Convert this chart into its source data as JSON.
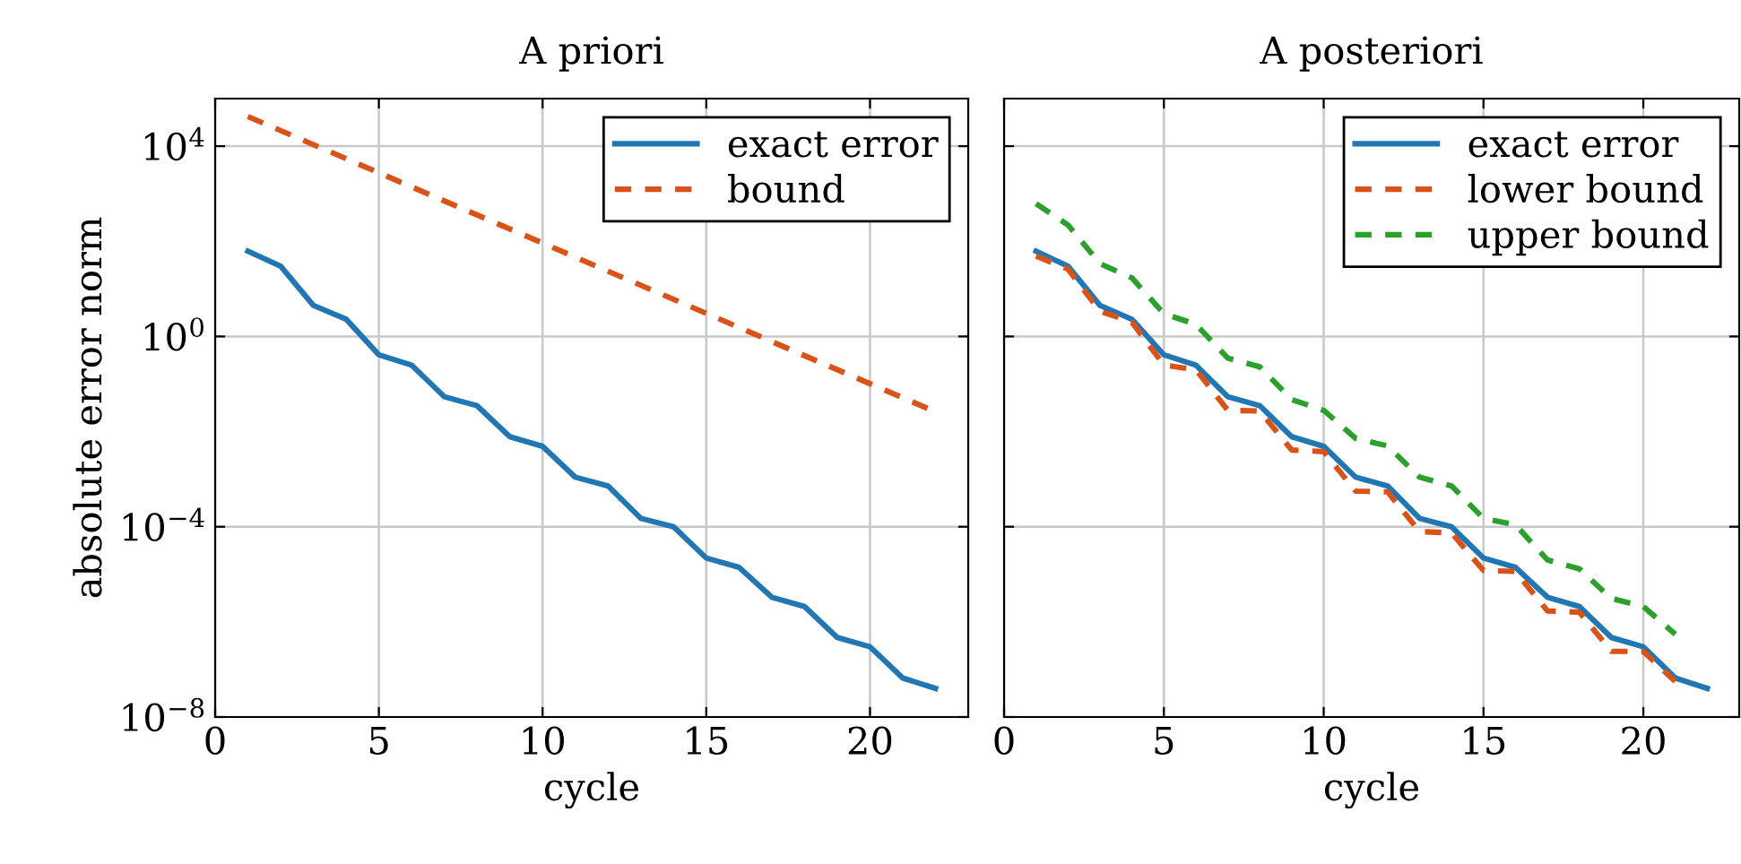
{
  "chart_data": [
    {
      "type": "line",
      "title": "A priori",
      "xlabel": "cycle",
      "ylabel": "absolute error norm",
      "log": "y",
      "grid": true,
      "legend": "top right",
      "xlim": [
        0,
        23
      ],
      "xticks": [
        0,
        5,
        10,
        15,
        20
      ],
      "ylim": [
        1e-08,
        100000.0
      ],
      "yticks": [
        {
          "value": 1e-08,
          "label": "10$^{−8}$"
        },
        {
          "value": 0.0001,
          "label": "10$^{−4}$"
        },
        {
          "value": 1,
          "label": "10$^{0}$"
        },
        {
          "value": 10000.0,
          "label": "10$^{4}$"
        }
      ],
      "series": [
        {
          "name": "exact error",
          "color": "#2077b4",
          "line_style": "solid",
          "x": [
            1,
            2,
            3,
            4,
            5,
            6,
            7,
            8,
            9,
            10,
            11,
            12,
            13,
            14,
            15,
            16,
            17,
            18,
            19,
            20,
            21,
            22
          ],
          "values": [
            62,
            30,
            4.5,
            2.3,
            0.41,
            0.25,
            0.054,
            0.035,
            0.0078,
            0.0049,
            0.0011,
            0.00072,
            0.00015,
            0.0001,
            2.2e-05,
            1.4e-05,
            3.3e-06,
            2.1e-06,
            4.7e-07,
            3e-07,
            6.6e-08,
            4e-08
          ]
        },
        {
          "name": "bound",
          "color": "#d95319",
          "line_style": "dashed",
          "x": [
            1,
            22
          ],
          "values": [
            42000.0,
            0.026
          ]
        }
      ]
    },
    {
      "type": "line",
      "title": "A posteriori",
      "xlabel": "cycle",
      "log": "y",
      "grid": true,
      "legend": "top right",
      "tick_labels": "x",
      "xlim": [
        0,
        23
      ],
      "xticks": [
        0,
        5,
        10,
        15,
        20
      ],
      "ylim": [
        1e-08,
        100000.0
      ],
      "yticks": [
        {
          "value": 1e-08,
          "label": null
        },
        {
          "value": 0.0001,
          "label": null
        },
        {
          "value": 1,
          "label": null
        },
        {
          "value": 10000.0,
          "label": null
        }
      ],
      "series": [
        {
          "name": "exact error",
          "color": "#2077b4",
          "line_style": "solid",
          "x": [
            1,
            2,
            3,
            4,
            5,
            6,
            7,
            8,
            9,
            10,
            11,
            12,
            13,
            14,
            15,
            16,
            17,
            18,
            19,
            20,
            21,
            22
          ],
          "values": [
            62,
            30,
            4.5,
            2.3,
            0.41,
            0.25,
            0.054,
            0.035,
            0.0078,
            0.0049,
            0.0011,
            0.00072,
            0.00015,
            0.0001,
            2.2e-05,
            1.4e-05,
            3.3e-06,
            2.1e-06,
            4.7e-07,
            3e-07,
            6.6e-08,
            4e-08
          ]
        },
        {
          "name": "lower bound",
          "color": "#d95319",
          "line_style": "dashed",
          "x": [
            1,
            2,
            3,
            4,
            5,
            6,
            7,
            8,
            9,
            10,
            11,
            12,
            13,
            14,
            15,
            16,
            17,
            18,
            19,
            20,
            21
          ],
          "values": [
            49,
            26,
            3.4,
            2.0,
            0.25,
            0.2,
            0.028,
            0.027,
            0.0041,
            0.0038,
            0.00056,
            0.00054,
            7.9e-05,
            7.4e-05,
            1.2e-05,
            1.15e-05,
            1.7e-06,
            1.6e-06,
            2.4e-07,
            2.4e-07,
            5.6e-08
          ]
        },
        {
          "name": "upper bound",
          "color": "#2ca02c",
          "line_style": "dashed",
          "x": [
            1,
            2,
            3,
            4,
            5,
            6,
            7,
            8,
            9,
            10,
            11,
            12,
            13,
            14,
            15,
            16,
            17,
            18,
            19,
            20,
            21
          ],
          "values": [
            620,
            220,
            34,
            17,
            3.0,
            1.8,
            0.35,
            0.23,
            0.047,
            0.028,
            0.0072,
            0.005,
            0.0011,
            0.00072,
            0.00015,
            0.00011,
            2e-05,
            1.3e-05,
            3.1e-06,
            2.1e-06,
            5.5e-07
          ]
        }
      ]
    }
  ]
}
